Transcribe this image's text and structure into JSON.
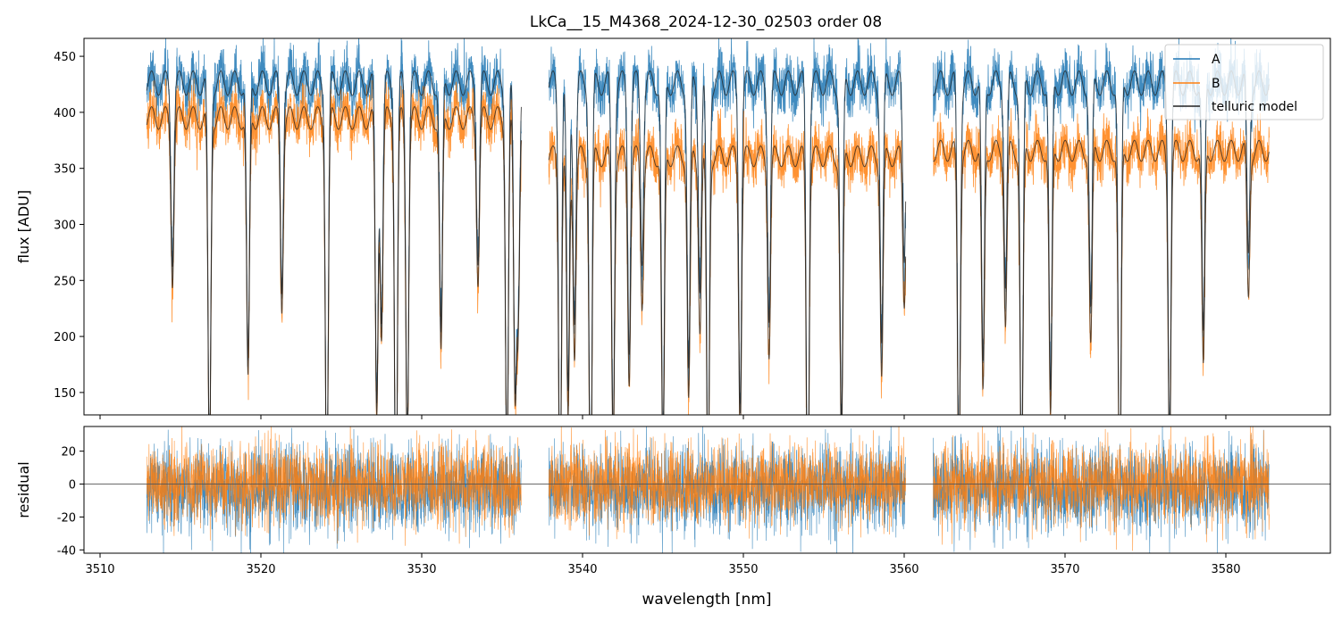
{
  "chart_data": [
    {
      "type": "line",
      "title": "LkCa__15_M4368_2024-12-30_02503  order 08",
      "xlabel": "",
      "ylabel": "flux [ADU]",
      "xlim": [
        3509,
        3586.5
      ],
      "ylim": [
        130,
        466
      ],
      "yticks": [
        150,
        200,
        250,
        300,
        350,
        400,
        450
      ],
      "xticks": [
        3510,
        3520,
        3530,
        3540,
        3550,
        3560,
        3570,
        3580
      ],
      "segments": [
        [
          3512.9,
          3536.2
        ],
        [
          3537.9,
          3560.1
        ],
        [
          3561.8,
          3582.7
        ]
      ],
      "series": [
        {
          "name": "A",
          "color": "#1f77b4",
          "continuum": 437,
          "noise": 12
        },
        {
          "name": "B",
          "color": "#ff7f0e",
          "continuum": 405,
          "noise": 11,
          "continuum_by_segment": [
            405,
            370,
            375
          ]
        },
        {
          "name": "telluric model",
          "color": "#222222"
        }
      ],
      "telluric_lines_nm": [
        3514.5,
        3516.8,
        3519.2,
        3521.3,
        3524.1,
        3527.2,
        3527.5,
        3528.4,
        3529.1,
        3531.2,
        3533.5,
        3535.3,
        3535.8,
        3536.0,
        3538.6,
        3539.1,
        3539.5,
        3540.5,
        3541.9,
        3542.9,
        3543.7,
        3545.0,
        3546.6,
        3547.3,
        3547.8,
        3549.8,
        3551.6,
        3554.0,
        3556.1,
        3558.6,
        3560.0,
        3563.4,
        3564.9,
        3566.3,
        3567.3,
        3569.1,
        3571.6,
        3573.4,
        3576.5,
        3578.6,
        3581.4
      ],
      "legend": [
        "A",
        "B",
        "telluric model"
      ],
      "legend_loc": "upper right"
    },
    {
      "type": "line",
      "xlabel": "wavelength [nm]",
      "ylabel": "residual",
      "xlim": [
        3509,
        3586.5
      ],
      "ylim": [
        -42,
        35
      ],
      "yticks": [
        -40,
        -20,
        0,
        20
      ],
      "xticks": [
        3510,
        3520,
        3530,
        3540,
        3550,
        3560,
        3570,
        3580
      ],
      "hline": 0,
      "series": [
        {
          "name": "A residual",
          "color": "#1f77b4",
          "sigma": 13
        },
        {
          "name": "B residual",
          "color": "#ff7f0e",
          "sigma": 12
        }
      ]
    }
  ]
}
